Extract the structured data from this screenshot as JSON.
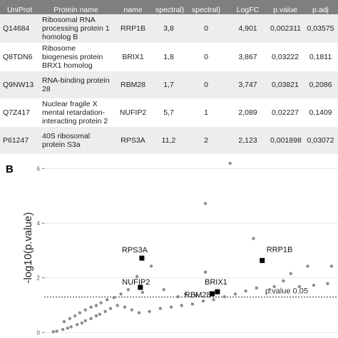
{
  "table": {
    "header": [
      "UniProt",
      "Protein name",
      "name",
      "spectral)",
      "spectral)",
      "LogFC",
      "p.value",
      "p.adj"
    ],
    "rows": [
      [
        "Q14684",
        "Ribosomal RNA processing protein 1 homolog B",
        "RRP1B",
        "3,8",
        "0",
        "4,901",
        "0,002311",
        "0,03575"
      ],
      [
        "Q8TDN6",
        "Ribosome biogenesis protein BRX1 homolog",
        "BRIX1",
        "1,8",
        "0",
        "3,867",
        "0,03222",
        "0,1811"
      ],
      [
        "Q9NW13",
        "RNA-binding protein 28",
        "RBM28",
        "1,7",
        "0",
        "3,747",
        "0,03821",
        "0,2086"
      ],
      [
        "Q7Z417",
        "Nuclear fragile X mental retardation-interacting protein 2",
        "NUFIP2",
        "5,7",
        "1",
        "2,089",
        "0,02227",
        "0,1409"
      ],
      [
        "P61247",
        "40S ribosomal protein S3a",
        "RPS3A",
        "11,2",
        "2",
        "2,123",
        "0,001898",
        "0,03072"
      ]
    ]
  },
  "chart_data": {
    "type": "scatter",
    "panel_label": "B",
    "ylabel": "-log10(p.value)",
    "xlim": [
      -0.13,
      6.65
    ],
    "ylim": [
      -0.2,
      6.4
    ],
    "yticks": [
      0,
      2,
      4,
      6
    ],
    "grid": true,
    "threshold": 1.301,
    "threshold_label": "p.value 0.05",
    "series": [
      {
        "color": "#8c8c8c",
        "x": [
          0.08,
          0.16,
          0.3,
          0.41,
          0.49,
          0.63,
          0.74,
          0.82,
          0.95,
          1.07,
          1.15,
          1.28,
          1.4,
          1.56,
          1.73,
          1.89,
          2.06,
          2.3,
          2.55,
          2.8,
          3.04,
          3.29,
          3.54,
          3.78,
          4.03,
          4.28,
          4.52,
          4.77,
          5.18,
          5.76,
          6.09,
          6.41,
          0.33,
          0.46,
          0.58,
          0.69,
          0.82,
          0.95,
          1.07,
          1.18,
          1.32,
          1.48,
          1.64,
          1.81,
          2.14,
          2.63,
          2.96,
          3.13,
          3.37,
          2.01,
          2.34,
          3.59,
          3.59,
          4.16,
          4.7,
          5.39,
          5.56,
          5.95,
          5.07,
          6.5
        ],
        "values": [
          0.03,
          0.05,
          0.11,
          0.16,
          0.21,
          0.29,
          0.35,
          0.43,
          0.51,
          0.61,
          0.67,
          0.77,
          0.88,
          0.99,
          0.93,
          0.83,
          0.72,
          0.77,
          0.88,
          0.93,
          0.99,
          1.04,
          1.15,
          1.2,
          1.31,
          1.41,
          1.52,
          1.63,
          1.68,
          1.68,
          1.73,
          1.79,
          0.4,
          0.51,
          0.61,
          0.72,
          0.83,
          0.93,
          0.99,
          1.09,
          1.2,
          1.28,
          1.41,
          1.57,
          1.47,
          1.57,
          1.31,
          1.41,
          1.36,
          2.05,
          2.43,
          2.21,
          4.72,
          6.19,
          3.44,
          1.89,
          2.16,
          2.43,
          1.57,
          2.43
        ]
      },
      {
        "color": "#000000",
        "labels": [
          "RRP1B",
          "BRIX1",
          "RBM28",
          "NUFIP2",
          "RPS3A"
        ],
        "x": [
          4.901,
          3.867,
          3.747,
          2.089,
          2.123
        ],
        "values": [
          2.636,
          1.492,
          1.418,
          1.652,
          2.722
        ]
      }
    ]
  }
}
